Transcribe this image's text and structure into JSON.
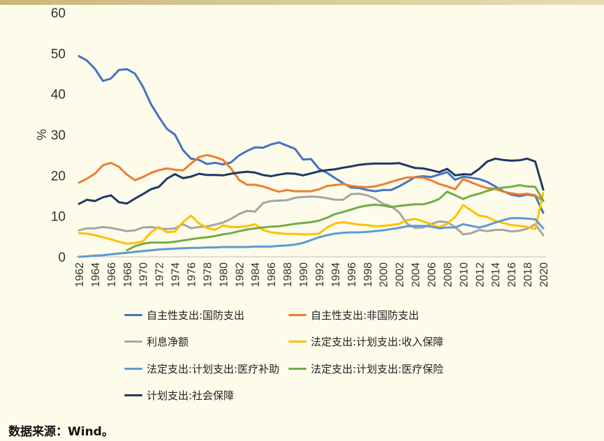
{
  "source": "数据来源：Wind。",
  "chart_data": {
    "type": "line",
    "title": "",
    "xlabel": "",
    "ylabel": "%",
    "ylim": [
      0,
      60
    ],
    "yticks": [
      0,
      10,
      20,
      30,
      40,
      50,
      60
    ],
    "grid": false,
    "legend_position": "bottom",
    "x": [
      1962,
      1963,
      1964,
      1965,
      1966,
      1967,
      1968,
      1969,
      1970,
      1971,
      1972,
      1973,
      1974,
      1975,
      1976,
      1977,
      1978,
      1979,
      1980,
      1981,
      1982,
      1983,
      1984,
      1985,
      1986,
      1987,
      1988,
      1989,
      1990,
      1991,
      1992,
      1993,
      1994,
      1995,
      1996,
      1997,
      1998,
      1999,
      2000,
      2001,
      2002,
      2003,
      2004,
      2005,
      2006,
      2007,
      2008,
      2009,
      2010,
      2011,
      2012,
      2013,
      2014,
      2015,
      2016,
      2017,
      2018,
      2019,
      2020
    ],
    "xtick_labels": [
      "1962",
      "1964",
      "1966",
      "1968",
      "1970",
      "1972",
      "1974",
      "1976",
      "1978",
      "1980",
      "1982",
      "1984",
      "1986",
      "1988",
      "1990",
      "1992",
      "1994",
      "1996",
      "1998",
      "2000",
      "2002",
      "2004",
      "2006",
      "2008",
      "2010",
      "2012",
      "2014",
      "2016",
      "2018",
      "2020"
    ],
    "series": [
      {
        "name": "自主性支出:国防支出",
        "color": "#4472c4",
        "values": [
          49.3,
          48.2,
          46.2,
          43.2,
          43.8,
          45.9,
          46.1,
          45.0,
          41.8,
          37.5,
          34.3,
          31.4,
          30.0,
          26.2,
          24.1,
          23.8,
          22.8,
          23.1,
          22.7,
          23.2,
          24.9,
          26.0,
          26.9,
          26.8,
          27.6,
          28.1,
          27.3,
          26.5,
          23.9,
          24.0,
          21.6,
          20.6,
          19.3,
          18.1,
          17.0,
          16.9,
          16.4,
          16.1,
          16.4,
          16.4,
          17.3,
          18.4,
          19.6,
          19.8,
          19.6,
          20.2,
          20.8,
          18.9,
          19.7,
          19.4,
          19.1,
          18.4,
          17.3,
          16.1,
          15.3,
          14.9,
          15.3,
          15.0,
          10.8
        ]
      },
      {
        "name": "自主性支出:非国防支出",
        "color": "#ed7d31",
        "values": [
          18.2,
          19.2,
          20.4,
          22.5,
          23.1,
          22.1,
          20.2,
          18.8,
          19.6,
          20.6,
          21.3,
          21.7,
          21.4,
          21.2,
          22.9,
          24.5,
          25.0,
          24.5,
          23.8,
          21.7,
          18.9,
          17.7,
          17.7,
          17.3,
          16.6,
          16.0,
          16.4,
          16.1,
          16.1,
          16.1,
          16.6,
          17.4,
          17.6,
          17.9,
          17.4,
          17.2,
          17.1,
          17.3,
          17.8,
          18.4,
          19.0,
          19.5,
          19.5,
          19.4,
          18.8,
          17.9,
          17.3,
          16.6,
          19.1,
          18.3,
          17.5,
          16.9,
          16.7,
          16.0,
          15.6,
          15.3,
          15.5,
          15.1,
          13.7
        ]
      },
      {
        "name": "利息净额",
        "color": "#a5a5a5",
        "values": [
          6.5,
          7.0,
          7.0,
          7.3,
          7.1,
          6.7,
          6.3,
          6.5,
          7.2,
          7.3,
          7.0,
          6.8,
          7.0,
          8.0,
          7.0,
          7.3,
          7.5,
          7.9,
          8.4,
          9.3,
          10.5,
          11.3,
          11.1,
          13.2,
          13.7,
          13.8,
          13.9,
          14.5,
          14.7,
          14.8,
          14.7,
          14.4,
          14.0,
          14.0,
          15.4,
          15.5,
          15.1,
          14.3,
          13.0,
          12.4,
          10.9,
          8.1,
          7.1,
          7.2,
          8.1,
          8.7,
          8.5,
          7.3,
          5.5,
          5.8,
          6.6,
          6.3,
          6.6,
          6.6,
          6.2,
          6.4,
          6.9,
          8.0,
          5.3
        ]
      },
      {
        "name": "法定支出:计划支出:收入保障",
        "color": "#ffc000",
        "values": [
          5.8,
          5.7,
          5.3,
          4.8,
          4.3,
          3.7,
          3.2,
          3.4,
          3.8,
          6.0,
          7.3,
          6.0,
          6.2,
          8.5,
          10.1,
          8.2,
          7.1,
          6.6,
          7.7,
          7.3,
          7.3,
          7.5,
          8.0,
          6.6,
          6.0,
          5.8,
          5.6,
          5.6,
          5.5,
          5.5,
          5.7,
          7.2,
          8.2,
          8.5,
          8.2,
          7.9,
          7.8,
          7.5,
          7.6,
          7.8,
          8.1,
          9.0,
          9.3,
          8.7,
          8.0,
          7.3,
          8.1,
          9.8,
          12.7,
          11.4,
          10.1,
          9.8,
          8.8,
          8.3,
          7.8,
          7.6,
          7.3,
          6.8,
          15.7
        ]
      },
      {
        "name": "法定支出:计划支出:医疗补助",
        "color": "#5b9bd5",
        "values": [
          0.0,
          0.1,
          0.3,
          0.4,
          0.6,
          0.8,
          1.0,
          1.2,
          1.4,
          1.6,
          1.8,
          1.9,
          2.0,
          2.1,
          2.2,
          2.2,
          2.3,
          2.3,
          2.4,
          2.4,
          2.4,
          2.4,
          2.5,
          2.5,
          2.5,
          2.7,
          2.8,
          3.0,
          3.4,
          4.1,
          4.8,
          5.3,
          5.7,
          5.9,
          6.0,
          6.0,
          6.1,
          6.3,
          6.5,
          6.8,
          7.1,
          7.5,
          7.6,
          7.6,
          7.4,
          7.0,
          7.2,
          7.2,
          8.0,
          7.6,
          7.2,
          7.7,
          8.4,
          9.0,
          9.5,
          9.5,
          9.4,
          9.2,
          7.0
        ]
      },
      {
        "name": "法定支出:计划支出:医疗保险",
        "color": "#70ad47",
        "values": [
          null,
          null,
          null,
          null,
          null,
          null,
          1.6,
          2.6,
          3.2,
          3.5,
          3.5,
          3.5,
          3.7,
          4.0,
          4.3,
          4.6,
          4.8,
          5.1,
          5.5,
          5.8,
          6.3,
          6.7,
          7.0,
          7.2,
          7.4,
          7.5,
          7.8,
          8.1,
          8.3,
          8.5,
          8.9,
          9.6,
          10.5,
          11.0,
          11.6,
          12.2,
          12.6,
          12.8,
          12.6,
          12.2,
          12.5,
          12.7,
          12.9,
          12.9,
          13.4,
          14.2,
          16.0,
          15.1,
          14.2,
          15.0,
          15.5,
          16.2,
          16.7,
          17.0,
          17.2,
          17.6,
          17.3,
          17.2,
          13.8
        ]
      },
      {
        "name": "计划支出:社会保障",
        "color": "#1f3864",
        "values": [
          13.0,
          14.0,
          13.7,
          14.6,
          15.1,
          13.4,
          13.1,
          14.3,
          15.4,
          16.6,
          17.2,
          19.2,
          20.3,
          19.3,
          19.7,
          20.4,
          20.1,
          20.1,
          20.0,
          20.4,
          20.7,
          20.9,
          20.7,
          20.1,
          19.8,
          20.2,
          20.5,
          20.4,
          20.0,
          20.5,
          21.0,
          21.3,
          21.5,
          21.9,
          22.2,
          22.6,
          22.8,
          22.9,
          22.9,
          22.9,
          23.0,
          22.4,
          21.8,
          21.7,
          21.3,
          20.8,
          21.6,
          20.0,
          20.3,
          20.2,
          21.6,
          23.4,
          24.1,
          23.8,
          23.6,
          23.7,
          24.1,
          23.4,
          16.5
        ]
      }
    ]
  }
}
